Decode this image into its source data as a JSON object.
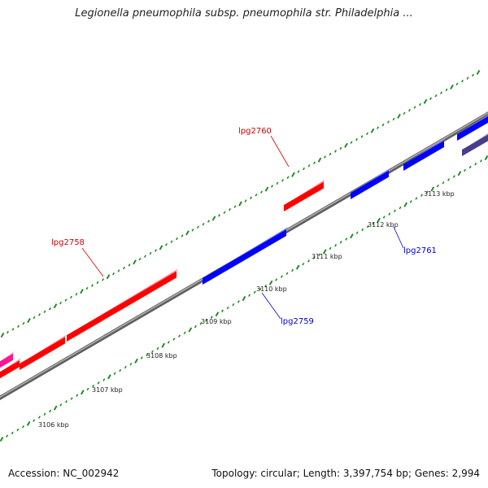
{
  "title": "Legionella pneumophila subsp. pneumophila str. Philadelphia ...",
  "footer": {
    "accession": "Accession: NC_002942",
    "stats": "Topology: circular; Length: 3,397,754 bp; Genes: 2,994"
  },
  "map": {
    "colors": {
      "forward": "#ff0000",
      "reverse": "#0000ff",
      "other_forward": "#ff1493",
      "other_reverse": "#483d8b",
      "backbone": "#808080",
      "ticks": "#228b22",
      "forward_label": "#cc0000",
      "reverse_label": "#0000cc"
    },
    "ruler_labels": [
      "3106 kbp",
      "3107 kbp",
      "3108 kbp",
      "3109 kbp",
      "3110 kbp",
      "3111 kbp",
      "3112 kbp",
      "3113 kbp"
    ],
    "gene_labels": [
      {
        "name": "lpg2758",
        "strand": "forward"
      },
      {
        "name": "lpg2760",
        "strand": "forward"
      },
      {
        "name": "lpg2759",
        "strand": "reverse"
      },
      {
        "name": "lpg2761",
        "strand": "reverse"
      }
    ]
  }
}
